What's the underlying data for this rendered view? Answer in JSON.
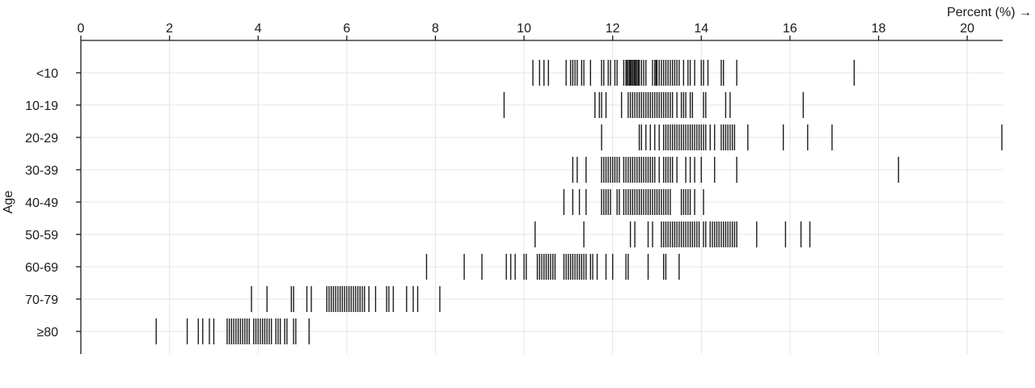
{
  "chart_data": {
    "type": "scatter",
    "mark": "tick",
    "xlabel": "Percent (%) →",
    "ylabel": "Age",
    "xlim": [
      0,
      20.8
    ],
    "x_ticks": [
      0,
      2,
      4,
      6,
      8,
      10,
      12,
      14,
      16,
      18,
      20
    ],
    "grid": true,
    "categories": [
      "<10",
      "10-19",
      "20-29",
      "30-39",
      "40-49",
      "50-59",
      "60-69",
      "70-79",
      "≥80"
    ],
    "series": [
      {
        "category": "<10",
        "values": [
          10.2,
          10.35,
          10.45,
          10.55,
          10.95,
          11.05,
          11.1,
          11.15,
          11.2,
          11.3,
          11.35,
          11.5,
          11.75,
          11.8,
          11.9,
          11.95,
          12.05,
          12.1,
          12.25,
          12.3,
          12.32,
          12.35,
          12.38,
          12.4,
          12.42,
          12.45,
          12.48,
          12.5,
          12.52,
          12.55,
          12.58,
          12.6,
          12.65,
          12.7,
          12.75,
          12.9,
          12.95,
          12.98,
          13.0,
          13.05,
          13.1,
          13.15,
          13.2,
          13.25,
          13.3,
          13.35,
          13.4,
          13.45,
          13.5,
          13.6,
          13.7,
          13.75,
          13.85,
          14.0,
          14.05,
          14.15,
          14.45,
          14.5,
          14.8,
          17.45
        ]
      },
      {
        "category": "10-19",
        "values": [
          9.55,
          11.6,
          11.7,
          11.75,
          11.85,
          12.2,
          12.35,
          12.4,
          12.45,
          12.5,
          12.55,
          12.6,
          12.65,
          12.7,
          12.75,
          12.8,
          12.85,
          12.9,
          12.95,
          13.0,
          13.05,
          13.1,
          13.15,
          13.2,
          13.25,
          13.3,
          13.35,
          13.45,
          13.55,
          13.6,
          13.65,
          13.75,
          13.8,
          14.05,
          14.1,
          14.55,
          14.65,
          16.3
        ]
      },
      {
        "category": "20-29",
        "values": [
          11.75,
          12.6,
          12.65,
          12.75,
          12.85,
          12.95,
          13.05,
          13.15,
          13.2,
          13.25,
          13.3,
          13.35,
          13.4,
          13.45,
          13.5,
          13.55,
          13.6,
          13.65,
          13.7,
          13.75,
          13.8,
          13.85,
          13.9,
          13.95,
          14.0,
          14.05,
          14.1,
          14.2,
          14.3,
          14.45,
          14.5,
          14.55,
          14.6,
          14.65,
          14.7,
          14.75,
          15.05,
          15.85,
          16.4,
          16.95,
          20.8
        ]
      },
      {
        "category": "30-39",
        "values": [
          11.1,
          11.2,
          11.4,
          11.75,
          11.8,
          11.85,
          11.9,
          11.95,
          12.0,
          12.05,
          12.1,
          12.15,
          12.25,
          12.3,
          12.35,
          12.4,
          12.45,
          12.5,
          12.55,
          12.6,
          12.65,
          12.7,
          12.75,
          12.8,
          12.85,
          12.9,
          12.95,
          13.05,
          13.15,
          13.2,
          13.25,
          13.3,
          13.35,
          13.45,
          13.65,
          13.75,
          13.85,
          14.0,
          14.3,
          14.8,
          18.45
        ]
      },
      {
        "category": "40-49",
        "values": [
          10.9,
          11.1,
          11.25,
          11.4,
          11.75,
          11.8,
          11.85,
          11.9,
          11.95,
          12.1,
          12.15,
          12.25,
          12.3,
          12.35,
          12.4,
          12.45,
          12.5,
          12.55,
          12.6,
          12.65,
          12.7,
          12.75,
          12.8,
          12.85,
          12.9,
          12.95,
          13.0,
          13.05,
          13.1,
          13.15,
          13.2,
          13.25,
          13.3,
          13.55,
          13.6,
          13.65,
          13.7,
          13.75,
          13.85,
          14.05
        ]
      },
      {
        "category": "50-59",
        "values": [
          10.25,
          11.35,
          12.4,
          12.5,
          12.8,
          12.9,
          13.1,
          13.15,
          13.2,
          13.25,
          13.3,
          13.35,
          13.4,
          13.45,
          13.5,
          13.55,
          13.6,
          13.65,
          13.7,
          13.75,
          13.8,
          13.85,
          13.9,
          13.95,
          14.05,
          14.1,
          14.2,
          14.25,
          14.3,
          14.35,
          14.4,
          14.45,
          14.5,
          14.55,
          14.6,
          14.65,
          14.7,
          14.75,
          14.8,
          15.25,
          15.9,
          16.25,
          16.45
        ]
      },
      {
        "category": "60-69",
        "values": [
          7.8,
          8.65,
          9.05,
          9.6,
          9.7,
          9.8,
          10.0,
          10.05,
          10.3,
          10.35,
          10.4,
          10.45,
          10.5,
          10.55,
          10.6,
          10.65,
          10.7,
          10.9,
          10.95,
          11.0,
          11.05,
          11.1,
          11.15,
          11.2,
          11.25,
          11.3,
          11.35,
          11.4,
          11.5,
          11.55,
          11.65,
          11.85,
          12.0,
          12.3,
          12.35,
          12.8,
          13.15,
          13.2,
          13.5
        ]
      },
      {
        "category": "70-79",
        "values": [
          3.85,
          4.2,
          4.75,
          4.8,
          5.1,
          5.2,
          5.55,
          5.6,
          5.65,
          5.7,
          5.75,
          5.8,
          5.85,
          5.9,
          5.95,
          6.0,
          6.05,
          6.1,
          6.15,
          6.2,
          6.25,
          6.3,
          6.35,
          6.4,
          6.5,
          6.65,
          6.9,
          6.95,
          7.05,
          7.35,
          7.5,
          7.6,
          8.1
        ]
      },
      {
        "category": "≥80",
        "values": [
          1.7,
          2.4,
          2.65,
          2.75,
          2.9,
          3.0,
          3.3,
          3.35,
          3.4,
          3.45,
          3.5,
          3.55,
          3.6,
          3.65,
          3.7,
          3.75,
          3.8,
          3.9,
          3.95,
          4.0,
          4.05,
          4.1,
          4.15,
          4.2,
          4.25,
          4.3,
          4.4,
          4.45,
          4.5,
          4.6,
          4.65,
          4.8,
          4.85,
          5.15
        ]
      }
    ]
  }
}
